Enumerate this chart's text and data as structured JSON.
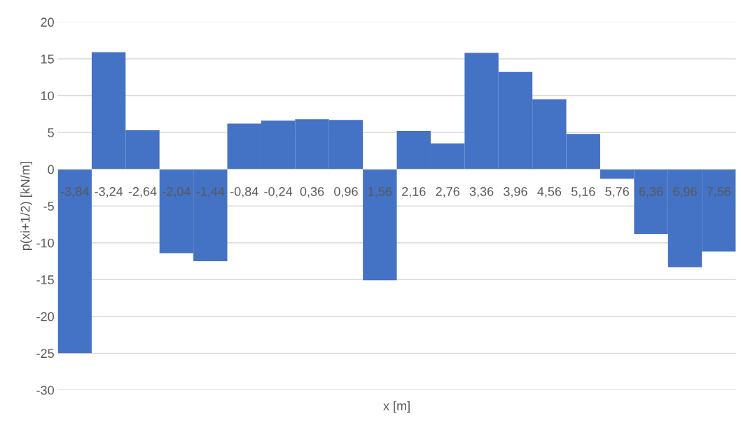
{
  "chart_data": {
    "type": "bar",
    "xlabel": "x [m]",
    "ylabel": "p(xi+1/2) [kN/m]",
    "categories": [
      "-3,84",
      "-3,24",
      "-2,64",
      "-2,04",
      "-1,44",
      "-0,84",
      "-0,24",
      "0,36",
      "0,96",
      "1,56",
      "2,16",
      "2,76",
      "3,36",
      "3,96",
      "4,56",
      "5,16",
      "5,76",
      "6,36",
      "6,96",
      "7,56"
    ],
    "values": [
      -25.0,
      15.9,
      5.3,
      -11.4,
      -12.5,
      6.2,
      6.6,
      6.8,
      6.7,
      -15.1,
      5.2,
      3.5,
      15.8,
      13.2,
      9.5,
      4.8,
      -1.3,
      -8.8,
      -13.3,
      -11.2
    ],
    "color": "#4472c4",
    "ylim": [
      -30,
      20
    ],
    "yticks": [
      -30,
      -25,
      -20,
      -15,
      -10,
      -5,
      0,
      5,
      10,
      15,
      20
    ],
    "grid": "y"
  }
}
